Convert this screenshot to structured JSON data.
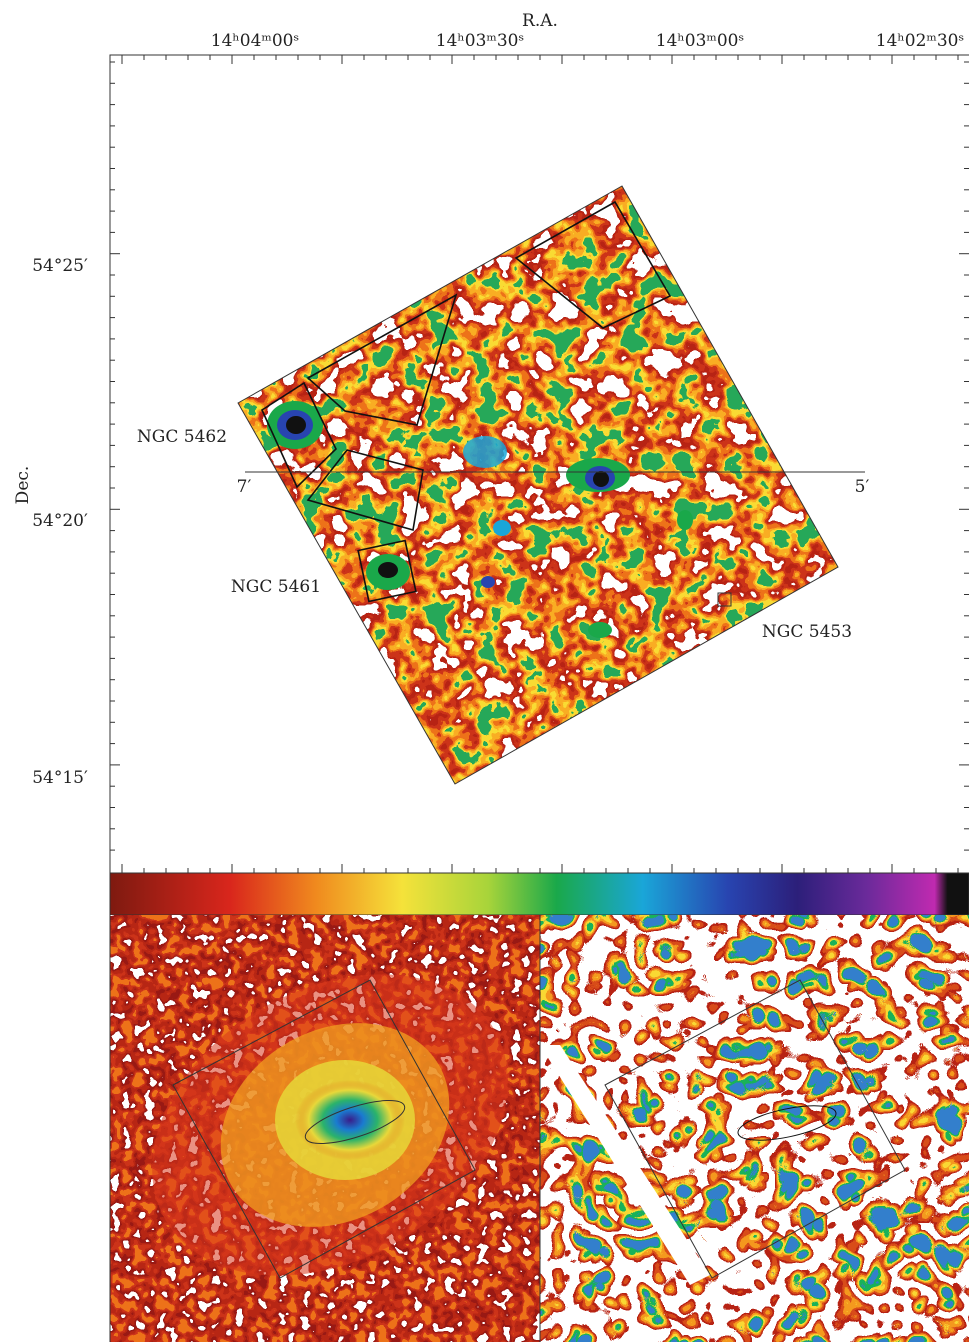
{
  "figure": {
    "x_axis_title": "R.A.",
    "y_axis_title": "Dec.",
    "ra_ticks": [
      "14ʰ04ᵐ00ˢ",
      "14ʰ03ᵐ30ˢ",
      "14ʰ03ᵐ00ˢ",
      "14ʰ02ᵐ30ˢ"
    ],
    "dec_ticks": [
      "54°25′",
      "54°20′",
      "54°15′"
    ],
    "offset_ticks": [
      "7′",
      "5′"
    ],
    "labels": [
      "NGC 5462",
      "NGC 5461",
      "NGC 5453"
    ]
  }
}
